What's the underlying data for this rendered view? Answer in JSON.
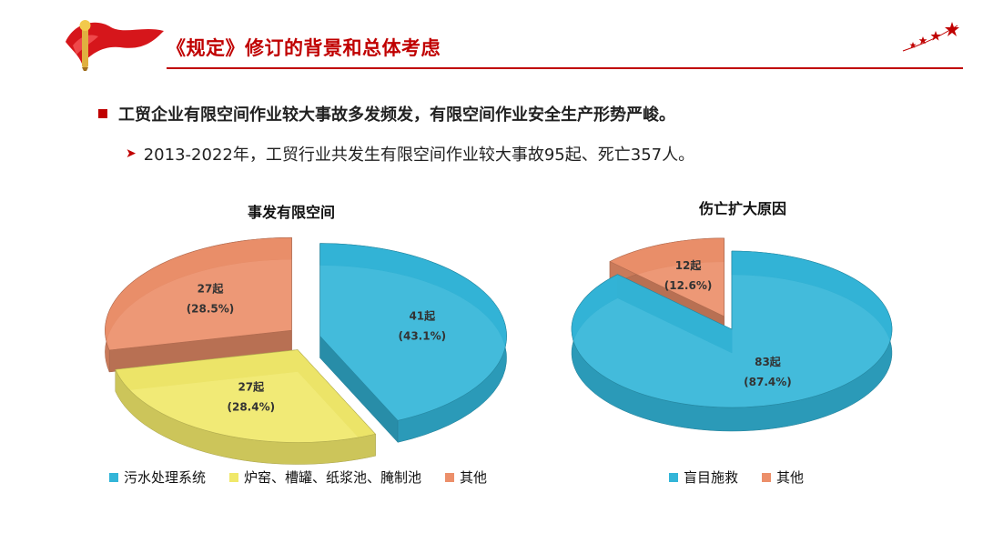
{
  "header": {
    "title": "《规定》修订的背景和总体考虑",
    "accent_color": "#c00000",
    "logo_icon": "flag-torch-icon",
    "decoration_icon": "stars-icon"
  },
  "bullets": {
    "main": "工贸企业有限空间作业较大事故多发频发，有限空间作业安全生产形势严峻。",
    "sub": "2013-2022年，工贸行业共发生有限空间作业较大事故95起、死亡357人。"
  },
  "chart_data": [
    {
      "type": "pie",
      "title": "事发有限空间",
      "categories": [
        "污水处理系统",
        "炉窑、槽罐、纸浆池、腌制池",
        "其他"
      ],
      "values": [
        41,
        27,
        27
      ],
      "data_labels": [
        {
          "count": "41起",
          "percent": "(43.1%)"
        },
        {
          "count": "27起",
          "percent": "(28.4%)"
        },
        {
          "count": "27起",
          "percent": "(28.5%)"
        }
      ],
      "colors": [
        "#33b5d8",
        "#f0e86a",
        "#ec8f6a"
      ],
      "exploded": true,
      "legend_position": "bottom"
    },
    {
      "type": "pie",
      "title": "伤亡扩大原因",
      "categories": [
        "盲目施救",
        "其他"
      ],
      "values": [
        83,
        12
      ],
      "data_labels": [
        {
          "count": "83起",
          "percent": "(87.4%)"
        },
        {
          "count": "12起",
          "percent": "(12.6%)"
        }
      ],
      "colors": [
        "#33b5d8",
        "#ec8f6a"
      ],
      "exploded": true,
      "legend_position": "bottom"
    }
  ]
}
